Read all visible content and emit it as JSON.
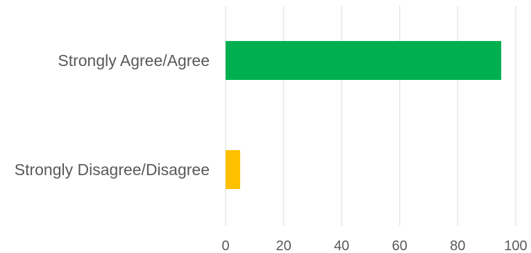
{
  "chart_data": {
    "type": "bar",
    "orientation": "horizontal",
    "categories": [
      "Strongly Agree/Agree",
      "Strongly Disagree/Disagree"
    ],
    "values": [
      95,
      5
    ],
    "colors": [
      "#00b050",
      "#ffc000"
    ],
    "xlim": [
      0,
      100
    ],
    "xticks": [
      "0",
      "20",
      "40",
      "60",
      "80",
      "100"
    ],
    "title": "",
    "xlabel": "",
    "ylabel": "",
    "grid": true,
    "legend": "none"
  }
}
